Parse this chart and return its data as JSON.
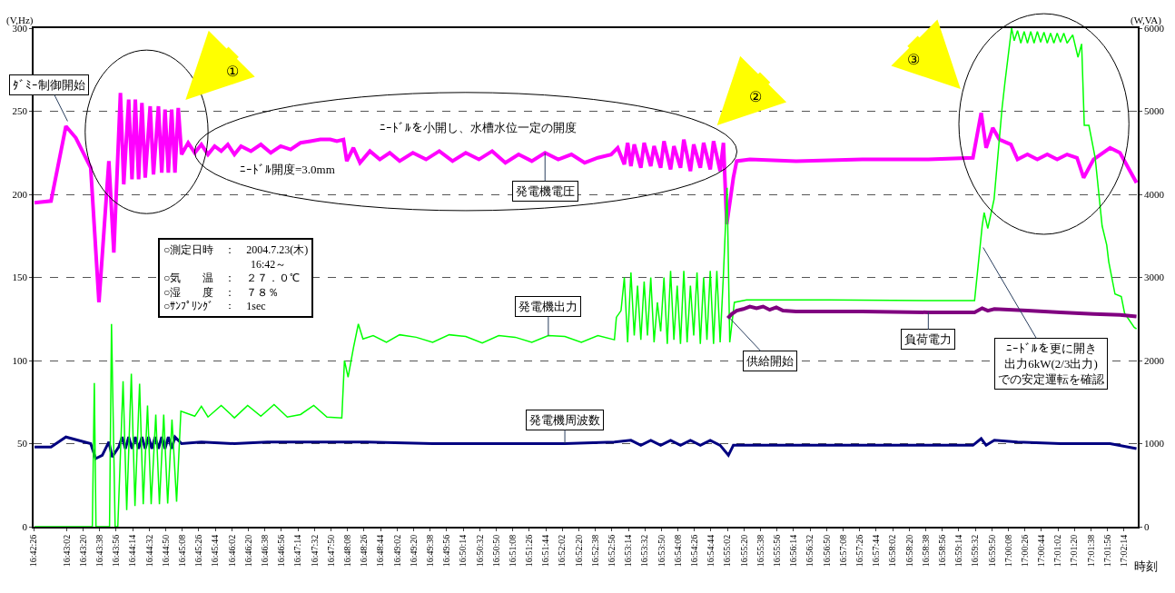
{
  "chart_data": {
    "type": "line",
    "xlabel": "時刻",
    "ylabel": "(V,Hz)",
    "y2label": "(W,VA)",
    "xlim": [
      16.70722,
      17.04139
    ],
    "ylim": [
      0,
      300
    ],
    "yticks": [
      0,
      50,
      100,
      150,
      200,
      250,
      300
    ],
    "y2lim": [
      0,
      6000
    ],
    "y2ticks": [
      0,
      1000,
      2000,
      3000,
      4000,
      5000,
      6000
    ],
    "grid": "y",
    "xticks": [
      {
        "value": 16.70722,
        "label": "16:42:26"
      },
      {
        "value": 16.71722,
        "label": "16:43:02"
      },
      {
        "value": 16.72222,
        "label": "16:43:20"
      },
      {
        "value": 16.72722,
        "label": "16:43:38"
      },
      {
        "value": 16.73222,
        "label": "16:43:56"
      },
      {
        "value": 16.73722,
        "label": "16:44:14"
      },
      {
        "value": 16.74222,
        "label": "16:44:32"
      },
      {
        "value": 16.74722,
        "label": "16:44:50"
      },
      {
        "value": 16.75222,
        "label": "16:45:08"
      },
      {
        "value": 16.75722,
        "label": "16:45:26"
      },
      {
        "value": 16.76222,
        "label": "16:45:44"
      },
      {
        "value": 16.76722,
        "label": "16:46:02"
      },
      {
        "value": 16.77222,
        "label": "16:46:20"
      },
      {
        "value": 16.77722,
        "label": "16:46:38"
      },
      {
        "value": 16.78222,
        "label": "16:46:56"
      },
      {
        "value": 16.78722,
        "label": "16:47:14"
      },
      {
        "value": 16.79222,
        "label": "16:47:32"
      },
      {
        "value": 16.79722,
        "label": "16:47:50"
      },
      {
        "value": 16.80222,
        "label": "16:48:08"
      },
      {
        "value": 16.80722,
        "label": "16:48:26"
      },
      {
        "value": 16.81222,
        "label": "16:48:44"
      },
      {
        "value": 16.81722,
        "label": "16:49:02"
      },
      {
        "value": 16.82222,
        "label": "16:49:20"
      },
      {
        "value": 16.82722,
        "label": "16:49:38"
      },
      {
        "value": 16.83222,
        "label": "16:49:56"
      },
      {
        "value": 16.83722,
        "label": "16:50:14"
      },
      {
        "value": 16.84222,
        "label": "16:50:32"
      },
      {
        "value": 16.84722,
        "label": "16:50:50"
      },
      {
        "value": 16.85222,
        "label": "16:51:08"
      },
      {
        "value": 16.85722,
        "label": "16:51:26"
      },
      {
        "value": 16.86222,
        "label": "16:51:44"
      },
      {
        "value": 16.86722,
        "label": "16:52:02"
      },
      {
        "value": 16.87222,
        "label": "16:52:20"
      },
      {
        "value": 16.87722,
        "label": "16:52:38"
      },
      {
        "value": 16.88222,
        "label": "16:52:56"
      },
      {
        "value": 16.88722,
        "label": "16:53:14"
      },
      {
        "value": 16.89222,
        "label": "16:53:32"
      },
      {
        "value": 16.89722,
        "label": "16:53:50"
      },
      {
        "value": 16.90222,
        "label": "16:54:08"
      },
      {
        "value": 16.90722,
        "label": "16:54:26"
      },
      {
        "value": 16.91222,
        "label": "16:54:44"
      },
      {
        "value": 16.91722,
        "label": "16:55:02"
      },
      {
        "value": 16.92222,
        "label": "16:55:20"
      },
      {
        "value": 16.92722,
        "label": "16:55:38"
      },
      {
        "value": 16.93222,
        "label": "16:55:56"
      },
      {
        "value": 16.93722,
        "label": "16:56:14"
      },
      {
        "value": 16.94222,
        "label": "16:56:32"
      },
      {
        "value": 16.94722,
        "label": "16:56:50"
      },
      {
        "value": 16.95222,
        "label": "16:57:08"
      },
      {
        "value": 16.95722,
        "label": "16:57:26"
      },
      {
        "value": 16.96222,
        "label": "16:57:44"
      },
      {
        "value": 16.96722,
        "label": "16:58:02"
      },
      {
        "value": 16.97222,
        "label": "16:58:20"
      },
      {
        "value": 16.97722,
        "label": "16:58:38"
      },
      {
        "value": 16.98222,
        "label": "16:58:56"
      },
      {
        "value": 16.98722,
        "label": "16:59:14"
      },
      {
        "value": 16.99222,
        "label": "16:59:32"
      },
      {
        "value": 16.99722,
        "label": "16:59:50"
      },
      {
        "value": 17.00222,
        "label": "17:00:08"
      },
      {
        "value": 17.00722,
        "label": "17:00:26"
      },
      {
        "value": 17.01222,
        "label": "17:00:44"
      },
      {
        "value": 17.01722,
        "label": "17:01:02"
      },
      {
        "value": 17.02222,
        "label": "17:01:20"
      },
      {
        "value": 17.02722,
        "label": "17:01:38"
      },
      {
        "value": 17.03222,
        "label": "17:01:56"
      },
      {
        "value": 17.03722,
        "label": "17:02:14"
      }
    ],
    "series": [
      {
        "name": "発電機出力",
        "axis": "y2",
        "color": "#00ff00",
        "x": [
          16.7075,
          16.725,
          16.7256,
          16.7261,
          16.7302,
          16.7308,
          16.7319,
          16.7327,
          16.7343,
          16.7354,
          16.7368,
          16.7379,
          16.7393,
          16.7404,
          16.7417,
          16.7428,
          16.7442,
          16.7453,
          16.7466,
          16.7478,
          16.7491,
          16.7505,
          16.7518,
          16.756,
          16.758,
          16.76,
          16.764,
          16.768,
          16.772,
          16.776,
          16.78,
          16.784,
          16.788,
          16.792,
          16.796,
          16.8005,
          16.8013,
          16.8024,
          16.804,
          16.8055,
          16.8069,
          16.81,
          16.814,
          16.818,
          16.823,
          16.828,
          16.833,
          16.838,
          16.843,
          16.848,
          16.853,
          16.858,
          16.863,
          16.868,
          16.873,
          16.878,
          16.883,
          16.8836,
          16.885,
          16.886,
          16.887,
          16.888,
          16.889,
          16.89,
          16.891,
          16.892,
          16.893,
          16.894,
          16.895,
          16.896,
          16.897,
          16.898,
          16.899,
          16.9,
          16.901,
          16.902,
          16.903,
          16.904,
          16.905,
          16.906,
          16.907,
          16.908,
          16.909,
          16.91,
          16.911,
          16.912,
          16.913,
          16.914,
          16.915,
          16.916,
          16.9171,
          16.9179,
          16.9193,
          16.923,
          16.948,
          16.978,
          16.992,
          16.9943,
          16.9949,
          16.996,
          16.9979,
          17.0003,
          17.0012,
          17.0032,
          17.004,
          17.005,
          17.006,
          17.007,
          17.008,
          17.009,
          17.01,
          17.011,
          17.012,
          17.013,
          17.014,
          17.015,
          17.016,
          17.017,
          17.018,
          17.019,
          17.02,
          17.0217,
          17.0233,
          17.0244,
          17.0252,
          17.0266,
          17.0285,
          17.0306,
          17.032,
          17.0326,
          17.0345,
          17.0364,
          17.0374,
          17.0403,
          17.041
        ],
        "values": [
          0,
          0,
          1730,
          0,
          0,
          2440,
          0,
          0,
          1750,
          200,
          1840,
          250,
          1720,
          270,
          1460,
          270,
          1350,
          270,
          1350,
          280,
          1290,
          300,
          1390,
          1330,
          1450,
          1320,
          1460,
          1310,
          1460,
          1330,
          1470,
          1320,
          1350,
          1460,
          1320,
          1310,
          2000,
          1800,
          2150,
          2440,
          2260,
          2300,
          2220,
          2310,
          2280,
          2220,
          2310,
          2290,
          2210,
          2300,
          2280,
          2220,
          2300,
          2290,
          2220,
          2300,
          2250,
          2520,
          2600,
          3000,
          2220,
          3060,
          2300,
          2900,
          2250,
          2950,
          2300,
          3000,
          2220,
          2700,
          2350,
          3000,
          2200,
          3080,
          2250,
          2900,
          2200,
          3080,
          2220,
          2900,
          2300,
          3060,
          2200,
          3000,
          2250,
          3080,
          2200,
          3080,
          2220,
          3040,
          4080,
          2220,
          2700,
          2730,
          2730,
          2720,
          2720,
          3620,
          3780,
          3590,
          3940,
          5030,
          5350,
          6000,
          5850,
          5970,
          5820,
          5960,
          5820,
          5960,
          5820,
          5960,
          5830,
          5950,
          5820,
          5940,
          5820,
          5940,
          5830,
          5940,
          5820,
          5920,
          5650,
          5810,
          4830,
          4830,
          4440,
          3620,
          3390,
          3190,
          2800,
          2770,
          2570,
          2400,
          2380
        ]
      },
      {
        "name": "負荷電力",
        "axis": "y2",
        "color": "#800080",
        "x": [
          16.9173,
          16.9185,
          16.92,
          16.922,
          16.924,
          16.926,
          16.928,
          16.93,
          16.932,
          16.934,
          16.938,
          16.958,
          16.978,
          16.992,
          16.9943,
          16.996,
          16.998,
          17.008,
          17.018,
          17.028,
          17.036,
          17.041
        ],
        "values": [
          2510,
          2560,
          2600,
          2620,
          2650,
          2630,
          2650,
          2610,
          2640,
          2600,
          2590,
          2590,
          2580,
          2580,
          2630,
          2600,
          2620,
          2600,
          2580,
          2560,
          2550,
          2530
        ]
      },
      {
        "name": "発電機周波数",
        "axis": "y",
        "color": "#000080",
        "x": [
          16.7075,
          16.7125,
          16.717,
          16.7245,
          16.726,
          16.728,
          16.73,
          16.731,
          16.733,
          16.734,
          16.735,
          16.736,
          16.737,
          16.738,
          16.739,
          16.74,
          16.741,
          16.742,
          16.743,
          16.744,
          16.745,
          16.746,
          16.747,
          16.748,
          16.749,
          16.75,
          16.752,
          16.758,
          16.768,
          16.778,
          16.788,
          16.798,
          16.808,
          16.828,
          16.848,
          16.868,
          16.883,
          16.888,
          16.891,
          16.894,
          16.897,
          16.9,
          16.903,
          16.906,
          16.909,
          16.912,
          16.915,
          16.9175,
          16.919,
          16.928,
          16.958,
          16.9915,
          16.994,
          16.9955,
          16.998,
          17.005,
          17.018,
          17.033,
          17.041
        ],
        "values": [
          48,
          48,
          54,
          50,
          41,
          43,
          51,
          42,
          48,
          54,
          47,
          54,
          47,
          54,
          47,
          54,
          47,
          54,
          47,
          54,
          47,
          54,
          47,
          54,
          47,
          54,
          50,
          51,
          50,
          51,
          51,
          51,
          51,
          50,
          50,
          50,
          51,
          52,
          49,
          52,
          49,
          52,
          49,
          52,
          49,
          52,
          49,
          43,
          49,
          49,
          49,
          49,
          53,
          49,
          52,
          51,
          50,
          50,
          47
        ]
      },
      {
        "name": "発電機電圧",
        "axis": "y",
        "color": "#ff00ff",
        "x": [
          16.7075,
          16.7125,
          16.717,
          16.72,
          16.7245,
          16.727,
          16.73,
          16.7315,
          16.7335,
          16.7345,
          16.736,
          16.737,
          16.738,
          16.739,
          16.74,
          16.741,
          16.7425,
          16.7435,
          16.745,
          16.746,
          16.747,
          16.748,
          16.749,
          16.75,
          16.751,
          16.752,
          16.754,
          16.756,
          16.758,
          16.76,
          16.762,
          16.764,
          16.766,
          16.768,
          16.77,
          16.773,
          16.776,
          16.779,
          16.782,
          16.785,
          16.788,
          16.791,
          16.794,
          16.797,
          16.799,
          16.801,
          16.802,
          16.804,
          16.806,
          16.809,
          16.812,
          16.815,
          16.818,
          16.822,
          16.826,
          16.83,
          16.834,
          16.838,
          16.842,
          16.846,
          16.85,
          16.854,
          16.858,
          16.862,
          16.866,
          16.87,
          16.874,
          16.878,
          16.882,
          16.884,
          16.886,
          16.887,
          16.888,
          16.889,
          16.891,
          16.892,
          16.894,
          16.895,
          16.897,
          16.898,
          16.9,
          16.901,
          16.903,
          16.904,
          16.906,
          16.907,
          16.909,
          16.91,
          16.912,
          16.913,
          16.915,
          16.916,
          16.917,
          16.919,
          16.92,
          16.924,
          16.938,
          16.958,
          16.978,
          16.9915,
          16.994,
          16.9955,
          16.9975,
          16.9995,
          17.003,
          17.005,
          17.008,
          17.011,
          17.014,
          17.017,
          17.02,
          17.023,
          17.025,
          17.028,
          17.033,
          17.036,
          17.041
        ],
        "values": [
          195,
          196,
          241,
          234,
          216,
          135,
          220,
          165,
          261,
          206,
          257,
          209,
          257,
          209,
          255,
          210,
          253,
          212,
          253,
          213,
          251,
          213,
          251,
          213,
          252,
          224,
          231,
          225,
          230,
          224,
          229,
          226,
          230,
          224,
          229,
          226,
          230,
          225,
          229,
          227,
          231,
          232,
          233,
          233,
          232,
          233,
          220,
          228,
          219,
          226,
          221,
          225,
          220,
          225,
          221,
          226,
          220,
          225,
          221,
          226,
          219,
          224,
          220,
          225,
          221,
          224,
          219,
          222,
          224,
          228,
          218,
          231,
          217,
          230,
          216,
          231,
          217,
          229,
          216,
          232,
          215,
          229,
          216,
          233,
          214,
          230,
          216,
          231,
          215,
          232,
          214,
          231,
          182,
          210,
          220,
          221,
          220,
          221,
          221,
          222,
          249,
          228,
          240,
          233,
          230,
          221,
          224,
          221,
          224,
          221,
          224,
          222,
          210,
          221,
          228,
          225,
          207
        ]
      }
    ],
    "annotations": [
      {
        "text": "ﾀﾞﾐｰ制御開始",
        "x": 16.7175,
        "y": 244
      },
      "①",
      "②",
      "③",
      {
        "text": "ﾆｰﾄﾞﾙ開度=3.0mm",
        "x": 16.784,
        "y": 229
      },
      {
        "text": "ﾆｰﾄﾞﾙを小開し、水槽水位一定の開度",
        "x": 16.8417,
        "y": 224
      },
      {
        "text": "供給開始",
        "x": 16.9177,
        "y": 126
      },
      {
        "text": "ﾆｰﾄﾞﾙを更に開き出力6kW(2/3出力)での安定運転を確認",
        "x": 16.9946,
        "y": 168
      },
      "○測定日時　：　2004.7.23(木)\n　　　　　　　　16:42～\n○気　　温　：　２７．０℃\n○湿　　度　：　７８％\n○ｻﾝﾌﾟﾘﾝｸﾞ　：　1sec"
    ]
  }
}
